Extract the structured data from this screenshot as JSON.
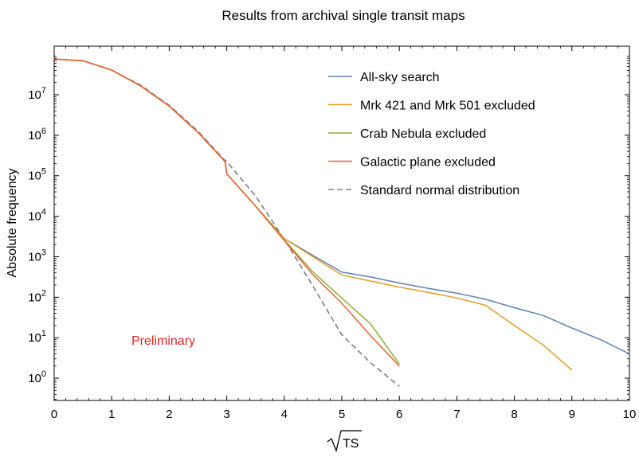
{
  "chart_data": {
    "type": "line",
    "title": "Results from archival single transit maps",
    "xlabel": "TS",
    "xlabel_sqrt": true,
    "ylabel": "Absolute frequency",
    "xlim": [
      0,
      10
    ],
    "ylog": true,
    "ylim_exp": [
      -0.55,
      8.2
    ],
    "xticks": [
      "0",
      "1",
      "2",
      "3",
      "4",
      "5",
      "6",
      "7",
      "8",
      "9",
      "10"
    ],
    "yticks": [
      {
        "base": "10",
        "exp": "0"
      },
      {
        "base": "10",
        "exp": "1"
      },
      {
        "base": "10",
        "exp": "2"
      },
      {
        "base": "10",
        "exp": "3"
      },
      {
        "base": "10",
        "exp": "4"
      },
      {
        "base": "10",
        "exp": "5"
      },
      {
        "base": "10",
        "exp": "6"
      },
      {
        "base": "10",
        "exp": "7"
      }
    ],
    "annotation": "Preliminary",
    "legend_position": "top-right",
    "x_log10": [
      0.0,
      0.5,
      1.0,
      1.5,
      2.0,
      2.5,
      2.97,
      3.0,
      3.5,
      4.0,
      4.5,
      5.0,
      5.5,
      6.0,
      6.5,
      7.0,
      7.5,
      8.0,
      8.5,
      9.0,
      9.5,
      10.0
    ],
    "series": [
      {
        "name": "All-sky search",
        "color": "#5e81b5",
        "style": "solid",
        "values_log10": [
          7.88,
          7.84,
          7.61,
          7.22,
          6.72,
          6.07,
          5.35,
          5.05,
          4.25,
          3.45,
          3.03,
          2.62,
          2.5,
          2.35,
          2.22,
          2.1,
          1.95,
          1.74,
          1.55,
          1.24,
          0.95,
          0.6
        ]
      },
      {
        "name": "Mrk 421 and Mrk 501 excluded",
        "color": "#e19c24",
        "style": "solid",
        "values_log10": [
          7.88,
          7.84,
          7.61,
          7.22,
          6.72,
          6.07,
          5.35,
          5.05,
          4.25,
          3.45,
          3.0,
          2.55,
          2.4,
          2.25,
          2.12,
          1.98,
          1.8,
          1.3,
          0.82,
          0.2,
          null,
          null
        ]
      },
      {
        "name": "Crab Nebula excluded",
        "color": "#8fb032",
        "style": "solid",
        "values_log10": [
          7.88,
          7.84,
          7.61,
          7.22,
          6.72,
          6.07,
          5.35,
          5.05,
          4.25,
          3.42,
          2.62,
          1.98,
          1.34,
          0.35,
          null,
          null,
          null,
          null,
          null,
          null,
          null,
          null
        ]
      },
      {
        "name": "Galactic plane excluded",
        "color": "#eb6235",
        "style": "solid",
        "values_log10": [
          7.88,
          7.84,
          7.61,
          7.22,
          6.72,
          6.07,
          5.35,
          5.05,
          4.25,
          3.4,
          2.55,
          1.85,
          1.05,
          0.3,
          null,
          null,
          null,
          null,
          null,
          null,
          null,
          null
        ]
      },
      {
        "name": "Standard normal distribution",
        "color": "#7f7f7f",
        "style": "dashed",
        "values_log10": [
          7.88,
          7.84,
          7.61,
          7.24,
          6.74,
          6.1,
          5.38,
          5.35,
          4.5,
          3.43,
          2.27,
          1.07,
          0.38,
          -0.2,
          null,
          null,
          null,
          null,
          null,
          null,
          null,
          null
        ]
      }
    ]
  }
}
